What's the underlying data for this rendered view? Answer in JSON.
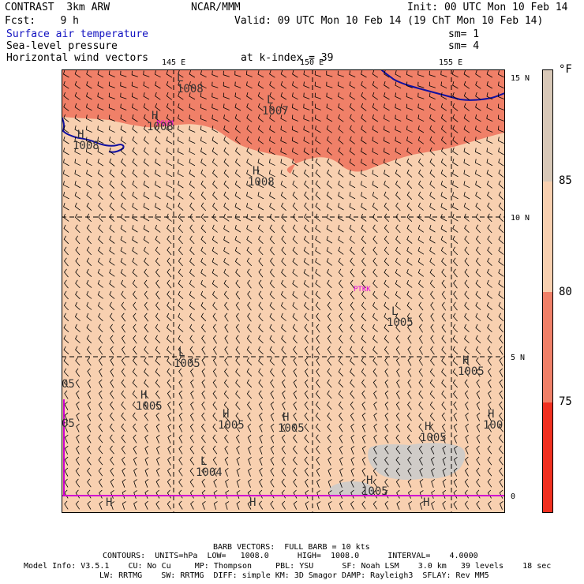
{
  "header": {
    "model": "CONTRAST  3km ARW",
    "org": "NCAR/MMM",
    "init": "Init: 00 UTC Mon 10 Feb 14",
    "fcst": "Fcst:    9 h",
    "valid": "Valid: 09 UTC Mon 10 Feb 14 (19 ChT Mon 10 Feb 14)",
    "fields": [
      {
        "name": "Surface air temperature",
        "sm": "sm= 1"
      },
      {
        "name": "Sea-level pressure",
        "sm": "sm= 4"
      },
      {
        "name": "Horizontal wind vectors",
        "sm": ""
      }
    ],
    "k_index": "at k-index = 39"
  },
  "axes": {
    "lon_labels": [
      "145 E",
      "150 E",
      "155 E"
    ],
    "lat_labels": [
      "15 N",
      "10 N",
      "5 N",
      "0"
    ]
  },
  "colorbar": {
    "unit": "°F",
    "labels": [
      "85",
      "80",
      "75"
    ],
    "colors": [
      "#d8c8b8",
      "#f8d0b0",
      "#f08068",
      "#f03020"
    ]
  },
  "colors": {
    "warm_fill": "#f8d0b0",
    "hot_fill": "#f08068",
    "cloud": "#d0ccc8",
    "coast": "#1010a0",
    "gridline": "#000000",
    "station": "#e000e0"
  },
  "stations": [
    "PGUM",
    "PTKK"
  ],
  "pressure_centers": [
    {
      "type": "L",
      "value": "1008"
    },
    {
      "type": "L",
      "value": "1007"
    },
    {
      "type": "H",
      "value": "1008"
    },
    {
      "type": "H",
      "value": "1008"
    },
    {
      "type": "H",
      "value": "1008"
    },
    {
      "type": "L",
      "value": "1005"
    },
    {
      "type": "L",
      "value": "1005"
    },
    {
      "type": "H",
      "value": "1005"
    },
    {
      "type": "H",
      "value": "1005"
    },
    {
      "type": "H",
      "value": "1005"
    },
    {
      "type": "H",
      "value": "1005"
    },
    {
      "type": "H",
      "value": "1005"
    },
    {
      "type": "H",
      "value": "1005"
    },
    {
      "type": "L",
      "value": "1004"
    },
    {
      "type": "H",
      "value": "1005"
    },
    {
      "type": "H",
      "value": ""
    },
    {
      "type": "H",
      "value": ""
    },
    {
      "type": "H",
      "value": ""
    },
    {
      "type": "H",
      "value": "100"
    }
  ],
  "edge_labels": [
    "05",
    "05"
  ],
  "footer": {
    "barb": "BARB VECTORS:  FULL BARB = 10 kts",
    "contours": "CONTOURS:  UNITS=hPa  LOW=   1008.0      HIGH=  1008.0      INTERVAL=    4.0000",
    "model_info": "Model Info: V3.5.1    CU: No Cu     MP: Thompson     PBL: YSU      SF: Noah LSM    3.0 km   39 levels    18 sec",
    "physics": "LW: RRTMG    SW: RRTMG  DIFF: simple KM: 3D Smagor DAMP: Rayleigh3  SFLAY: Rev MM5"
  }
}
